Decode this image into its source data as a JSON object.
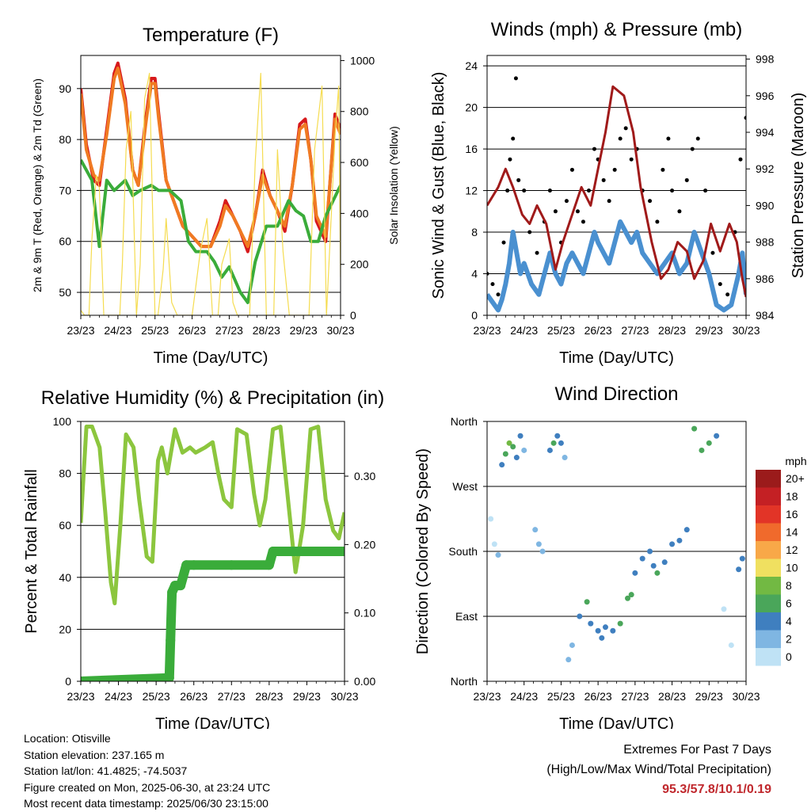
{
  "chart_data": [
    {
      "id": "temperature",
      "type": "line",
      "title": "Temperature (F)",
      "xlabel": "Time (Day/UTC)",
      "ylabel": "2m & 9m T (Red, Orange) & 2m Td (Green)",
      "y2label": "Solar Insolation (Yellow)",
      "x_ticks": [
        "23/23",
        "24/23",
        "25/23",
        "26/23",
        "27/23",
        "28/23",
        "29/23",
        "30/23"
      ],
      "xlim": [
        0,
        7
      ],
      "ylim": [
        45.5,
        96.5
      ],
      "y_ticks": [
        50,
        60,
        70,
        80,
        90
      ],
      "y2lim": [
        0,
        1020
      ],
      "y2_ticks": [
        0,
        200,
        400,
        600,
        800,
        1000
      ],
      "grid": "horizontal",
      "series": [
        {
          "name": "2m T",
          "color": "#d7191c",
          "axis": "left",
          "x": [
            0,
            0.15,
            0.35,
            0.5,
            0.7,
            0.9,
            1.0,
            1.2,
            1.4,
            1.55,
            1.75,
            1.9,
            2.0,
            2.1,
            2.3,
            2.5,
            2.75,
            3.0,
            3.25,
            3.5,
            3.75,
            3.9,
            4.1,
            4.3,
            4.5,
            4.7,
            4.9,
            5.1,
            5.3,
            5.5,
            5.7,
            5.9,
            6.05,
            6.2,
            6.35,
            6.6,
            6.85,
            7.0
          ],
          "y": [
            90,
            79,
            72,
            71,
            82,
            93,
            95,
            88,
            74,
            71,
            84,
            92,
            92,
            85,
            72,
            68,
            63,
            61,
            59,
            59,
            64,
            68,
            65,
            62,
            58,
            65,
            74,
            69,
            66,
            62,
            71,
            83,
            84,
            76,
            64,
            60,
            85,
            82
          ]
        },
        {
          "name": "9m T",
          "color": "#f07a22",
          "axis": "left",
          "x": [
            0,
            0.15,
            0.35,
            0.5,
            0.7,
            0.9,
            1.0,
            1.2,
            1.4,
            1.55,
            1.75,
            1.9,
            2.0,
            2.1,
            2.3,
            2.5,
            2.75,
            3.0,
            3.25,
            3.5,
            3.75,
            3.9,
            4.1,
            4.3,
            4.5,
            4.7,
            4.9,
            5.1,
            5.3,
            5.5,
            5.7,
            5.9,
            6.05,
            6.2,
            6.35,
            6.6,
            6.85,
            7.0
          ],
          "y": [
            89,
            78,
            73,
            72,
            81,
            92,
            94,
            87,
            74,
            71,
            83,
            91,
            91,
            84,
            72,
            68,
            63,
            61,
            59,
            59,
            63,
            67,
            65,
            62,
            59,
            65,
            73,
            69,
            66,
            63,
            71,
            82,
            83,
            76,
            65,
            61,
            84,
            81
          ]
        },
        {
          "name": "2m Td",
          "color": "#3aac3a",
          "axis": "left",
          "x": [
            0,
            0.3,
            0.5,
            0.7,
            0.9,
            1.2,
            1.4,
            1.6,
            1.9,
            2.1,
            2.4,
            2.7,
            2.9,
            3.1,
            3.4,
            3.6,
            3.8,
            4.0,
            4.3,
            4.5,
            4.7,
            5.0,
            5.3,
            5.6,
            5.8,
            6.0,
            6.2,
            6.4,
            6.6,
            6.8,
            7.0
          ],
          "y": [
            76,
            72,
            59,
            72,
            70,
            72,
            69,
            70,
            71,
            70,
            70,
            68,
            60,
            58,
            58,
            56,
            53,
            55,
            50,
            48,
            56,
            63,
            63,
            68,
            66,
            65,
            60,
            60,
            65,
            68,
            71
          ]
        },
        {
          "name": "Solar Insolation",
          "color": "#f5dc50",
          "axis": "right",
          "x": [
            0,
            0.1,
            0.22,
            0.3,
            0.42,
            0.5,
            0.62,
            0.75,
            0.9,
            1.05,
            1.12,
            1.22,
            1.35,
            1.5,
            1.6,
            1.72,
            1.85,
            2.0,
            2.08,
            2.22,
            2.3,
            2.45,
            2.6,
            2.75,
            2.9,
            3.0,
            3.22,
            3.4,
            3.55,
            3.7,
            3.8,
            4.0,
            4.1,
            4.22,
            4.35,
            4.55,
            4.7,
            4.85,
            5.0,
            5.2,
            5.3,
            5.45,
            5.62,
            5.75,
            5.9,
            6.0,
            6.15,
            6.3,
            6.5,
            6.62,
            6.72,
            6.85,
            6.95,
            7.0
          ],
          "y": [
            20,
            0,
            0,
            300,
            550,
            500,
            0,
            0,
            0,
            0,
            200,
            650,
            800,
            0,
            200,
            850,
            950,
            0,
            0,
            180,
            380,
            50,
            0,
            0,
            0,
            0,
            250,
            380,
            0,
            0,
            200,
            300,
            50,
            0,
            0,
            0,
            600,
            950,
            0,
            0,
            650,
            250,
            0,
            0,
            0,
            0,
            0,
            650,
            900,
            0,
            300,
            700,
            900,
            150
          ]
        }
      ]
    },
    {
      "id": "winds",
      "type": "scatter",
      "title": "Winds (mph) & Pressure (mb)",
      "xlabel": "Time (Day/UTC)",
      "ylabel": "Sonic Wind & Gust (Blue, Black)",
      "y2label": "Station Pressure (Maroon)",
      "x_ticks": [
        "23/23",
        "24/23",
        "25/23",
        "26/23",
        "27/23",
        "28/23",
        "29/23",
        "30/23"
      ],
      "xlim": [
        0,
        7
      ],
      "ylim": [
        0,
        25
      ],
      "y_ticks": [
        0,
        4,
        8,
        12,
        16,
        20,
        24
      ],
      "y2lim": [
        984,
        998.2
      ],
      "y2_ticks": [
        984,
        986,
        988,
        990,
        992,
        994,
        996,
        998
      ],
      "grid": "horizontal",
      "series": [
        {
          "name": "Sonic Wind",
          "color": "#4a90d0",
          "axis": "left",
          "x": [
            0,
            0.2,
            0.3,
            0.4,
            0.5,
            0.6,
            0.7,
            0.8,
            0.9,
            1.0,
            1.2,
            1.4,
            1.55,
            1.7,
            1.85,
            2.0,
            2.15,
            2.3,
            2.45,
            2.6,
            2.75,
            2.9,
            3.0,
            3.15,
            3.3,
            3.45,
            3.6,
            3.75,
            3.9,
            4.05,
            4.2,
            4.4,
            4.6,
            4.8,
            5.0,
            5.2,
            5.4,
            5.6,
            5.8,
            6.0,
            6.2,
            6.4,
            6.6,
            6.8,
            6.9,
            7.0
          ],
          "y": [
            2,
            1,
            0.5,
            1.5,
            3,
            5,
            8,
            6,
            4,
            5,
            3,
            2,
            4,
            6,
            4,
            3,
            5,
            6,
            5,
            4,
            6,
            8,
            7,
            6,
            5,
            7,
            9,
            8,
            7,
            8,
            6,
            5,
            4,
            5,
            6,
            4,
            5,
            8,
            6,
            4,
            1,
            0.5,
            1,
            4,
            6,
            2
          ]
        },
        {
          "name": "Gust",
          "color": "#000000",
          "axis": "left",
          "x": [
            0,
            0.15,
            0.3,
            0.45,
            0.55,
            0.62,
            0.7,
            0.78,
            0.85,
            1.0,
            1.15,
            1.35,
            1.55,
            1.7,
            1.85,
            2.0,
            2.15,
            2.3,
            2.45,
            2.6,
            2.75,
            2.9,
            3.0,
            3.15,
            3.3,
            3.45,
            3.6,
            3.75,
            3.9,
            4.05,
            4.2,
            4.4,
            4.6,
            4.75,
            4.9,
            5.0,
            5.2,
            5.4,
            5.55,
            5.7,
            5.9,
            6.1,
            6.3,
            6.5,
            6.7,
            6.85,
            7.0
          ],
          "y": [
            4,
            3,
            2,
            7,
            12,
            15,
            17,
            22.8,
            13,
            12,
            8,
            6,
            9,
            12,
            10,
            7,
            11,
            14,
            10,
            9,
            12,
            16,
            15,
            13,
            11,
            14,
            17,
            18,
            15,
            16,
            12,
            11,
            9,
            14,
            17,
            12,
            10,
            13,
            16,
            17,
            12,
            6,
            3,
            2,
            8,
            15,
            19
          ]
        },
        {
          "name": "Station Pressure",
          "color": "#a01a1a",
          "axis": "right",
          "x": [
            0,
            0.3,
            0.5,
            0.7,
            0.95,
            1.15,
            1.35,
            1.6,
            1.85,
            2.05,
            2.3,
            2.55,
            2.8,
            3.0,
            3.2,
            3.4,
            3.7,
            3.95,
            4.15,
            4.45,
            4.7,
            4.9,
            5.15,
            5.4,
            5.6,
            5.85,
            6.05,
            6.3,
            6.55,
            6.75,
            6.9,
            7.0
          ],
          "y": [
            990,
            991,
            992,
            991,
            989.5,
            989,
            990,
            989,
            986.5,
            988,
            989.5,
            991,
            990,
            992,
            994,
            996.5,
            996,
            994,
            991,
            988,
            986,
            986.5,
            988,
            987.5,
            986,
            987,
            989,
            987.5,
            989,
            988,
            986,
            985
          ]
        }
      ]
    },
    {
      "id": "humidity",
      "type": "line",
      "title": "Relative Humidity (%) & Precipitation (in)",
      "xlabel": "Time (Day/UTC)",
      "ylabel": "Percent & Total Rainfall",
      "x_ticks": [
        "23/23",
        "24/23",
        "25/23",
        "26/23",
        "27/23",
        "28/23",
        "29/23",
        "30/23"
      ],
      "xlim": [
        0,
        7
      ],
      "ylim": [
        0,
        100
      ],
      "y_ticks": [
        0,
        20,
        40,
        60,
        80,
        100
      ],
      "y2lim": [
        0,
        0.38
      ],
      "y2_ticks": [
        "0.00",
        "0.10",
        "0.20",
        "0.30"
      ],
      "grid": "horizontal",
      "series": [
        {
          "name": "Relative Humidity",
          "color": "#8cc63e",
          "axis": "left",
          "x": [
            0,
            0.15,
            0.3,
            0.5,
            0.65,
            0.8,
            0.9,
            1.05,
            1.2,
            1.4,
            1.55,
            1.75,
            1.9,
            2.05,
            2.15,
            2.3,
            2.5,
            2.7,
            2.9,
            3.05,
            3.3,
            3.5,
            3.65,
            3.8,
            4.0,
            4.15,
            4.4,
            4.6,
            4.75,
            4.9,
            5.1,
            5.3,
            5.5,
            5.7,
            5.9,
            6.1,
            6.3,
            6.5,
            6.7,
            6.85,
            7.0
          ],
          "y": [
            61,
            98,
            98,
            90,
            65,
            38,
            30,
            60,
            95,
            90,
            70,
            48,
            46,
            85,
            90,
            80,
            97,
            88,
            90,
            88,
            90,
            92,
            80,
            70,
            67,
            97,
            95,
            72,
            60,
            70,
            97,
            98,
            70,
            42,
            60,
            97,
            98,
            70,
            58,
            55,
            65
          ]
        },
        {
          "name": "Total Precipitation",
          "color": "#3aac3a",
          "axis": "right",
          "x": [
            0,
            2.35,
            2.38,
            2.42,
            2.5,
            2.65,
            2.8,
            3.0,
            4.0,
            5.0,
            5.1,
            6.0,
            7.0
          ],
          "y": [
            0,
            0.005,
            0.06,
            0.13,
            0.14,
            0.14,
            0.17,
            0.17,
            0.17,
            0.17,
            0.19,
            0.19,
            0.19
          ]
        }
      ]
    },
    {
      "id": "direction",
      "type": "scatter",
      "title": "Wind Direction",
      "xlabel": "Time (Day/UTC)",
      "ylabel": "Direction (Colored By Speed)",
      "x_ticks": [
        "23/23",
        "24/23",
        "25/23",
        "26/23",
        "27/23",
        "28/23",
        "29/23",
        "30/23"
      ],
      "xlim": [
        0,
        7
      ],
      "ylim": [
        0,
        360
      ],
      "y_ticks": [
        "North",
        "East",
        "South",
        "West",
        "North"
      ],
      "grid": "horizontal",
      "colorbar": {
        "title": "mph",
        "labels": [
          "20+",
          "18",
          "16",
          "14",
          "12",
          "10",
          "8",
          "6",
          "4",
          "2",
          "0"
        ],
        "colors": [
          "#9b1b1b",
          "#c42024",
          "#e23427",
          "#f06a2c",
          "#f8a848",
          "#f0e060",
          "#72b943",
          "#4aa65a",
          "#3f7fbf",
          "#7fb6e2",
          "#bfe2f5"
        ]
      },
      "series": [
        {
          "name": "Direction",
          "color": "#4a90d0",
          "x": [
            0.1,
            0.2,
            0.3,
            0.4,
            0.5,
            0.6,
            0.7,
            0.8,
            0.9,
            1.0,
            1.3,
            1.4,
            1.5,
            1.7,
            1.8,
            1.9,
            2.0,
            2.1,
            2.2,
            2.3,
            2.5,
            2.7,
            2.8,
            3.0,
            3.1,
            3.2,
            3.4,
            3.6,
            3.8,
            3.9,
            4.0,
            4.2,
            4.4,
            4.5,
            4.6,
            4.8,
            5.0,
            5.2,
            5.4,
            5.6,
            5.8,
            6.0,
            6.2,
            6.4,
            6.6,
            6.8,
            6.9
          ],
          "y": [
            225,
            190,
            175,
            300,
            315,
            330,
            325,
            310,
            340,
            320,
            210,
            190,
            180,
            320,
            330,
            340,
            330,
            310,
            30,
            50,
            90,
            110,
            80,
            70,
            60,
            75,
            70,
            80,
            115,
            120,
            150,
            170,
            180,
            160,
            150,
            165,
            190,
            195,
            210,
            350,
            320,
            330,
            340,
            100,
            50,
            155,
            170
          ],
          "speed": [
            1,
            1,
            2,
            5,
            7,
            8,
            6,
            4,
            5,
            3,
            2,
            2,
            3,
            5,
            6,
            5,
            4,
            3,
            2,
            2,
            4,
            6,
            5,
            5,
            4,
            4,
            5,
            6,
            7,
            6,
            5,
            4,
            4,
            5,
            6,
            5,
            4,
            4,
            5,
            6,
            7,
            6,
            5,
            1,
            1,
            4,
            5
          ]
        }
      ]
    }
  ],
  "footer": {
    "location": "Location: Otisville",
    "elevation": "Station elevation: 237.165 m",
    "latlon": "Station lat/lon: 41.4825; -74.5037",
    "created": "Figure created on Mon, 2025-06-30, at 23:24 UTC",
    "recent": "Most recent data timestamp: 2025/06/30 23:15:00"
  },
  "extremes": {
    "title": "Extremes For Past 7 Days",
    "subtitle": "(High/Low/Max Wind/Total Precipitation)",
    "values": "95.3/57.8/10.1/0.19"
  }
}
